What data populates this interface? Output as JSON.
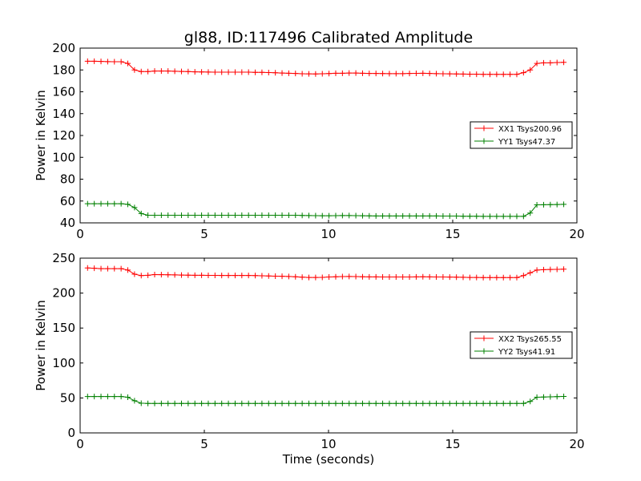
{
  "figure": {
    "title": "gl88, ID:117496 Calibrated Amplitude"
  },
  "chart_data": [
    {
      "type": "line",
      "title": "gl88, ID:117496 Calibrated Amplitude",
      "xlabel": "",
      "ylabel": "Power in Kelvin",
      "xlim": [
        0,
        20
      ],
      "ylim": [
        40,
        200
      ],
      "xticks": [
        0,
        5,
        10,
        15,
        20
      ],
      "yticks": [
        40,
        60,
        80,
        100,
        120,
        140,
        160,
        180,
        200
      ],
      "grid": false,
      "legend_position": "right",
      "x": [
        0.3,
        0.57,
        0.84,
        1.11,
        1.38,
        1.65,
        1.92,
        2.19,
        2.46,
        2.73,
        3.0,
        3.27,
        3.54,
        3.81,
        4.08,
        4.35,
        4.62,
        4.89,
        5.16,
        5.43,
        5.7,
        5.97,
        6.24,
        6.51,
        6.78,
        7.05,
        7.32,
        7.59,
        7.86,
        8.13,
        8.4,
        8.67,
        8.94,
        9.21,
        9.48,
        9.75,
        10.02,
        10.29,
        10.56,
        10.83,
        11.1,
        11.37,
        11.64,
        11.91,
        12.18,
        12.45,
        12.72,
        12.99,
        13.26,
        13.53,
        13.8,
        14.07,
        14.34,
        14.61,
        14.88,
        15.15,
        15.42,
        15.69,
        15.96,
        16.23,
        16.5,
        16.77,
        17.04,
        17.31,
        17.58,
        17.85,
        18.12,
        18.39,
        18.66,
        18.93,
        19.2,
        19.47
      ],
      "series": [
        {
          "name": "XX1 Tsys200.96",
          "color": "#ff0000",
          "values": [
            188,
            188,
            187.8,
            187.6,
            187.5,
            187.5,
            186,
            180,
            178.5,
            178.5,
            179,
            179,
            179,
            178.8,
            178.6,
            178.5,
            178.3,
            178.2,
            178.1,
            178,
            178,
            178,
            178,
            178,
            178,
            177.8,
            177.8,
            177.6,
            177.4,
            177.2,
            177,
            176.8,
            176.5,
            176.4,
            176.3,
            176.5,
            176.7,
            177,
            177,
            177.2,
            177.2,
            177,
            176.8,
            176.8,
            176.7,
            176.6,
            176.6,
            176.6,
            176.8,
            176.9,
            177,
            176.8,
            176.6,
            176.5,
            176.4,
            176.3,
            176.2,
            176.1,
            176.1,
            176,
            176,
            176,
            176,
            176,
            176,
            177.5,
            180,
            186,
            186.5,
            186.5,
            186.8,
            187
          ]
        },
        {
          "name": "YY1 Tsys47.37",
          "color": "#008000",
          "values": [
            57.5,
            57.5,
            57.5,
            57.5,
            57.5,
            57.5,
            57,
            54,
            48.5,
            47,
            47,
            47,
            47,
            47,
            47,
            47,
            47,
            47,
            47,
            47,
            47,
            47,
            47,
            47,
            47,
            47,
            47,
            47,
            47,
            47,
            47,
            47,
            46.8,
            46.7,
            46.6,
            46.5,
            46.5,
            46.6,
            46.7,
            46.7,
            46.6,
            46.5,
            46.4,
            46.3,
            46.3,
            46.3,
            46.3,
            46.3,
            46.3,
            46.3,
            46.3,
            46.3,
            46.3,
            46.2,
            46.2,
            46.2,
            46.1,
            46.1,
            46.1,
            46,
            46,
            46,
            46,
            46,
            46,
            46,
            49,
            56.5,
            56.6,
            56.7,
            56.8,
            57
          ]
        }
      ]
    },
    {
      "type": "line",
      "title": "",
      "xlabel": "Time (seconds)",
      "ylabel": "Power in Kelvin",
      "xlim": [
        0,
        20
      ],
      "ylim": [
        0,
        250
      ],
      "xticks": [
        0,
        5,
        10,
        15,
        20
      ],
      "yticks": [
        0,
        50,
        100,
        150,
        200,
        250
      ],
      "grid": false,
      "legend_position": "right",
      "x": [
        0.3,
        0.57,
        0.84,
        1.11,
        1.38,
        1.65,
        1.92,
        2.19,
        2.46,
        2.73,
        3.0,
        3.27,
        3.54,
        3.81,
        4.08,
        4.35,
        4.62,
        4.89,
        5.16,
        5.43,
        5.7,
        5.97,
        6.24,
        6.51,
        6.78,
        7.05,
        7.32,
        7.59,
        7.86,
        8.13,
        8.4,
        8.67,
        8.94,
        9.21,
        9.48,
        9.75,
        10.02,
        10.29,
        10.56,
        10.83,
        11.1,
        11.37,
        11.64,
        11.91,
        12.18,
        12.45,
        12.72,
        12.99,
        13.26,
        13.53,
        13.8,
        14.07,
        14.34,
        14.61,
        14.88,
        15.15,
        15.42,
        15.69,
        15.96,
        16.23,
        16.5,
        16.77,
        17.04,
        17.31,
        17.58,
        17.85,
        18.12,
        18.39,
        18.66,
        18.93,
        19.2,
        19.47
      ],
      "series": [
        {
          "name": "XX2 Tsys265.55",
          "color": "#ff0000",
          "values": [
            236,
            235.5,
            235,
            235,
            235,
            235,
            233,
            227,
            225,
            225.5,
            226.5,
            226.3,
            226.2,
            226,
            225.8,
            225.6,
            225.5,
            225.5,
            225.4,
            225.3,
            225.2,
            225.2,
            225.2,
            225.2,
            225.2,
            225,
            224.8,
            224.5,
            224.2,
            224,
            223.8,
            223.3,
            222.8,
            222.4,
            222.3,
            222.5,
            223,
            223.3,
            223.6,
            223.8,
            223.6,
            223.3,
            223.2,
            223.2,
            223.1,
            223,
            223,
            223,
            223.1,
            223.2,
            223.3,
            223.2,
            223.1,
            223,
            222.9,
            222.8,
            222.6,
            222.4,
            222.3,
            222.2,
            222.2,
            222.2,
            222.2,
            222.2,
            222.2,
            225,
            229,
            233,
            233.5,
            233.8,
            234,
            234.2
          ]
        },
        {
          "name": "YY2 Tsys41.91",
          "color": "#008000",
          "values": [
            52,
            52,
            52,
            52,
            52,
            52,
            51,
            46,
            42.5,
            42.2,
            42.2,
            42.2,
            42.2,
            42.2,
            42.2,
            42.2,
            42.2,
            42.2,
            42.2,
            42.2,
            42.2,
            42.2,
            42.2,
            42.2,
            42.2,
            42.2,
            42.2,
            42.2,
            42.2,
            42.2,
            42.2,
            42.2,
            42.2,
            42.2,
            42.2,
            42.2,
            42.2,
            42.2,
            42.2,
            42.2,
            42.2,
            42.2,
            42.2,
            42.2,
            42.2,
            42.2,
            42.2,
            42.2,
            42.2,
            42.2,
            42.2,
            42.2,
            42.2,
            42.2,
            42.2,
            42.2,
            42.2,
            42.2,
            42.2,
            42.2,
            42.2,
            42.2,
            42.2,
            42.2,
            42.2,
            42.2,
            45,
            51,
            51.3,
            51.6,
            51.9,
            52.2
          ]
        }
      ]
    }
  ]
}
